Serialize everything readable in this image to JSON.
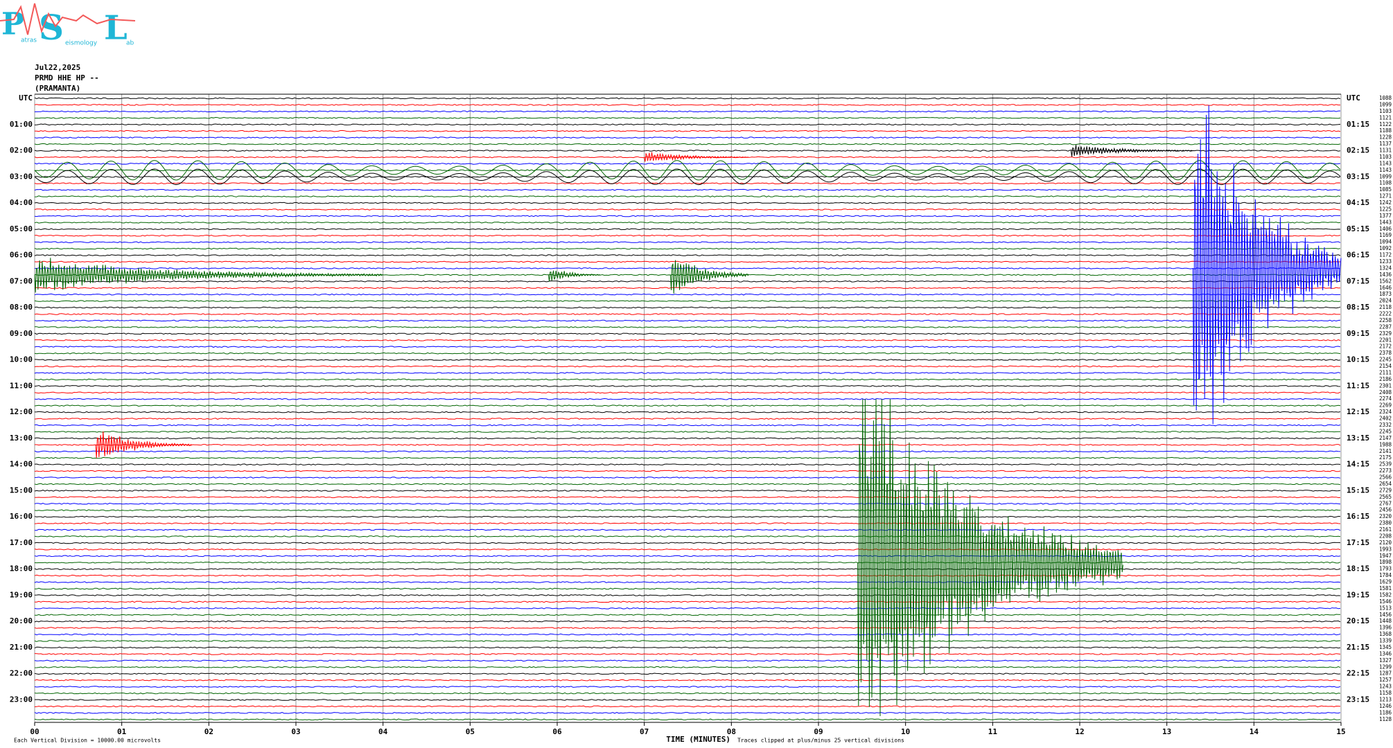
{
  "chart_data": {
    "type": "helicorder",
    "logo": {
      "letters": [
        "P",
        "S",
        "L"
      ],
      "words": [
        "atras",
        "eismology",
        "ab"
      ]
    },
    "date": "Jul22,2025",
    "station": "PRMD HHE HP --",
    "location": "(PRAMANTA)",
    "left_labels": [
      "UTC",
      "01:00",
      "02:00",
      "03:00",
      "04:00",
      "05:00",
      "06:00",
      "07:00",
      "08:00",
      "09:00",
      "10:00",
      "11:00",
      "12:00",
      "13:00",
      "14:00",
      "15:00",
      "16:00",
      "17:00",
      "18:00",
      "19:00",
      "20:00",
      "21:00",
      "22:00",
      "23:00"
    ],
    "right_labels": [
      "UTC",
      "01:15",
      "02:15",
      "03:15",
      "04:15",
      "05:15",
      "06:15",
      "07:15",
      "08:15",
      "09:15",
      "10:15",
      "11:15",
      "12:15",
      "13:15",
      "14:15",
      "15:15",
      "16:15",
      "17:15",
      "18:15",
      "19:15",
      "20:15",
      "21:15",
      "22:15",
      "23:15"
    ],
    "row_counts": [
      "1088",
      "1099",
      "1103",
      "1121",
      "1122",
      "1188",
      "1228",
      "1137",
      "1131",
      "1103",
      "1143",
      "1143",
      "1099",
      "1108",
      "1085",
      "1271",
      "1242",
      "1225",
      "1377",
      "1443",
      "1406",
      "1169",
      "1094",
      "1092",
      "1172",
      "1233",
      "1324",
      "1436",
      "1562",
      "1646",
      "1873",
      "2024",
      "2118",
      "2222",
      "2258",
      "2287",
      "2329",
      "2201",
      "2172",
      "2378",
      "2245",
      "2154",
      "2111",
      "2186",
      "2301",
      "2408",
      "2274",
      "2269",
      "2324",
      "2402",
      "2332",
      "2245",
      "2147",
      "1988",
      "2141",
      "2175",
      "2539",
      "2273",
      "2566",
      "2654",
      "2729",
      "2565",
      "2767",
      "2456",
      "2320",
      "2380",
      "2161",
      "2208",
      "2120",
      "1993",
      "1947",
      "1898",
      "1793",
      "1784",
      "1629",
      "1581",
      "1582",
      "1546",
      "1513",
      "1456",
      "1448",
      "1396",
      "1368",
      "1339",
      "1345",
      "1346",
      "1327",
      "1299",
      "1287",
      "1257",
      "1243",
      "1158",
      "1213",
      "1246",
      "1186",
      "1128"
    ],
    "trace_colors": [
      "#000000",
      "#ff0000",
      "#0000ff",
      "#006400"
    ],
    "xlim": [
      0,
      15
    ],
    "xticks": [
      {
        "value": 0,
        "label": "00"
      },
      {
        "value": 1,
        "label": "01"
      },
      {
        "value": 2,
        "label": "02"
      },
      {
        "value": 3,
        "label": "03"
      },
      {
        "value": 4,
        "label": "04"
      },
      {
        "value": 5,
        "label": "05"
      },
      {
        "value": 6,
        "label": "06"
      },
      {
        "value": 7,
        "label": "07"
      },
      {
        "value": 8,
        "label": "08"
      },
      {
        "value": 9,
        "label": "09"
      },
      {
        "value": 10,
        "label": "10"
      },
      {
        "value": 11,
        "label": "11"
      },
      {
        "value": 12,
        "label": "12"
      },
      {
        "value": 13,
        "label": "13"
      },
      {
        "value": 14,
        "label": "14"
      },
      {
        "value": 15,
        "label": "15"
      }
    ],
    "xlabel": "TIME (MINUTES)",
    "scale_note": "Each Vertical Division = 10000.00 microvolts",
    "clip_note": "Traces clipped at plus/minus 25 vertical divisions",
    "events": [
      {
        "row": 8,
        "start": 11.9,
        "end": 13.3,
        "amplitude": 1.2
      },
      {
        "row": 9,
        "start": 7.0,
        "end": 8.2,
        "amplitude": 1
      },
      {
        "row": 11,
        "start": 0,
        "end": 15,
        "amplitude": 1.5
      },
      {
        "row": 12,
        "start": 0,
        "end": 15,
        "amplitude": 1.2
      },
      {
        "row": 26,
        "start": 13.3,
        "end": 15,
        "amplitude": 25
      },
      {
        "row": 27,
        "start": 0,
        "end": 4,
        "amplitude": 3
      },
      {
        "row": 27,
        "start": 7.3,
        "end": 8.2,
        "amplitude": 4
      },
      {
        "row": 27,
        "start": 5.9,
        "end": 6.5,
        "amplitude": 1.5
      },
      {
        "row": 53,
        "start": 0.7,
        "end": 1.8,
        "amplitude": 3
      },
      {
        "row": 71,
        "start": 9.45,
        "end": 12.5,
        "amplitude": 25
      }
    ]
  }
}
